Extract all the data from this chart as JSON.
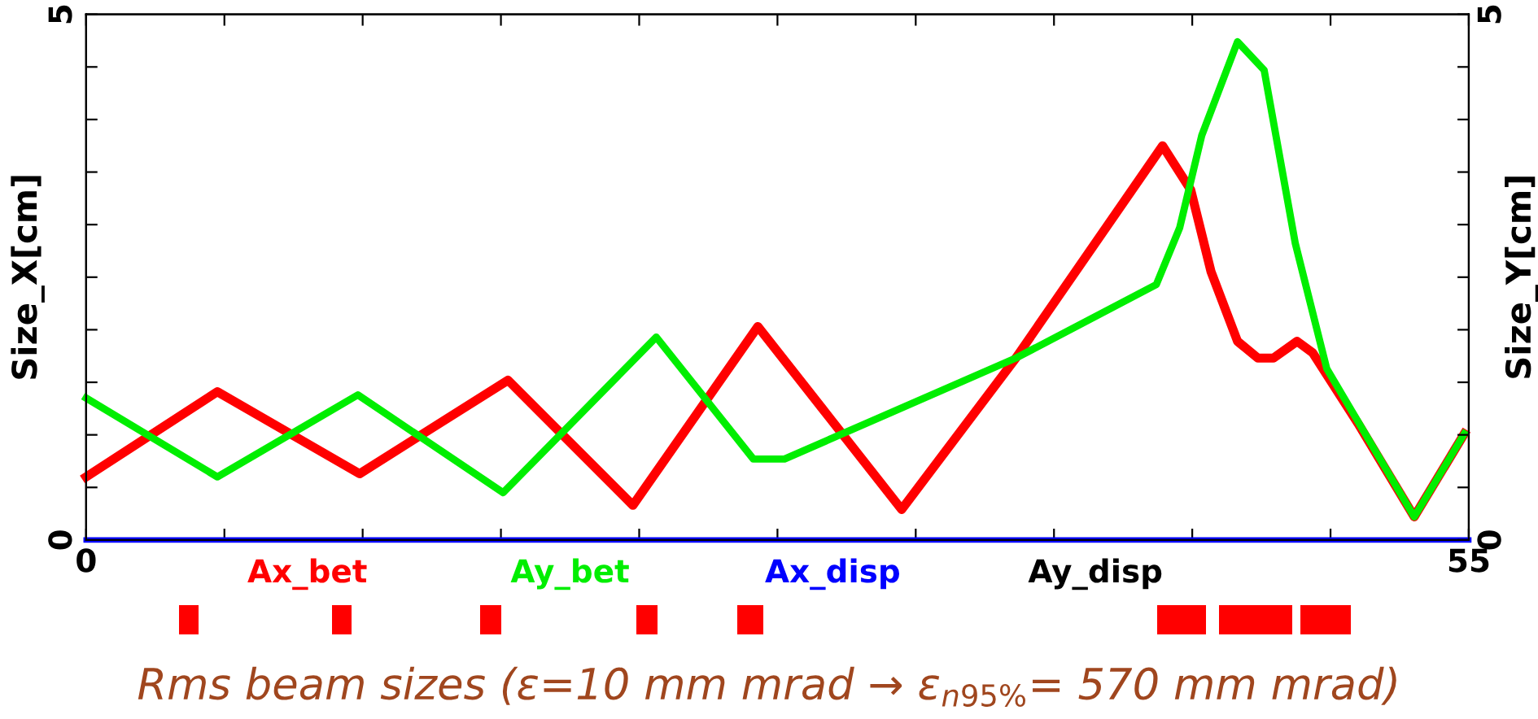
{
  "chart_data": {
    "type": "line",
    "ylabel": "Size_X[cm]",
    "y2label": "Size_Y[cm]",
    "annotations": [
      "Rms beam sizes (ε=10 mm mrad → ε$_{n95%}$= 570 mm mrad)"
    ],
    "xlim": [
      0,
      55
    ],
    "ylim": [
      0,
      5
    ],
    "y2lim": [
      0,
      5
    ],
    "xticks": [
      0,
      {
        "value": 5.5,
        "label": null
      },
      {
        "value": 11,
        "label": null
      },
      {
        "value": 16.5,
        "label": null
      },
      {
        "value": 22,
        "label": null
      },
      {
        "value": 27.5,
        "label": null
      },
      {
        "value": 33,
        "label": null
      },
      {
        "value": 38.5,
        "label": null
      },
      {
        "value": 44,
        "label": null
      },
      {
        "value": 49.5,
        "label": null
      },
      55
    ],
    "yticks": [
      0,
      {
        "value": 0.5,
        "label": null
      },
      {
        "value": 1,
        "label": null
      },
      {
        "value": 1.5,
        "label": null
      },
      {
        "value": 2,
        "label": null
      },
      {
        "value": 2.5,
        "label": null
      },
      {
        "value": 3,
        "label": null
      },
      {
        "value": 3.5,
        "label": null
      },
      {
        "value": 4,
        "label": null
      },
      {
        "value": 4.5,
        "label": null
      },
      5
    ],
    "y2ticks": [
      0,
      {
        "value": 0.5,
        "label": null
      },
      {
        "value": 1,
        "label": null
      },
      {
        "value": 1.5,
        "label": null
      },
      {
        "value": 2,
        "label": null
      },
      {
        "value": 2.5,
        "label": null
      },
      {
        "value": 3,
        "label": null
      },
      {
        "value": 3.5,
        "label": null
      },
      {
        "value": 4,
        "label": null
      },
      {
        "value": 4.5,
        "label": null
      },
      5
    ],
    "grid": false,
    "legend": "bottom",
    "marker": "none",
    "line_style": "solid",
    "series": [
      {
        "name": "Ax_bet",
        "color": "#ff0000",
        "x": [
          0,
          5.22,
          10.88,
          16.78,
          21.75,
          26.72,
          32.44,
          36.98,
          42.82,
          43.94,
          44.75,
          45.8,
          46.61,
          47.23,
          48.17,
          48.79,
          50.59,
          52.83,
          54.82
        ],
        "values": [
          0.6,
          1.41,
          0.63,
          1.52,
          0.33,
          2.03,
          0.29,
          1.73,
          3.75,
          3.33,
          2.55,
          1.89,
          1.73,
          1.73,
          1.89,
          1.78,
          1.11,
          0.22,
          1.01
        ]
      },
      {
        "name": "Ay_bet",
        "color": "#00ee00",
        "x": [
          0,
          5.22,
          10.81,
          16.59,
          22.68,
          26.54,
          27.78,
          36.98,
          42.57,
          43.5,
          44.38,
          45.8,
          46.86,
          48.1,
          49.35,
          52.83,
          54.82
        ],
        "values": [
          1.35,
          0.6,
          1.38,
          0.45,
          1.93,
          0.77,
          0.77,
          1.73,
          2.43,
          2.97,
          3.85,
          4.74,
          4.47,
          2.82,
          1.63,
          0.22,
          1.01
        ]
      },
      {
        "name": "Ax_disp",
        "color": "#0000ff",
        "x": [
          0,
          55
        ],
        "values": [
          0,
          0
        ]
      },
      {
        "name": "Ay_disp",
        "color": "#000000",
        "values": [
          null
        ]
      }
    ]
  }
}
